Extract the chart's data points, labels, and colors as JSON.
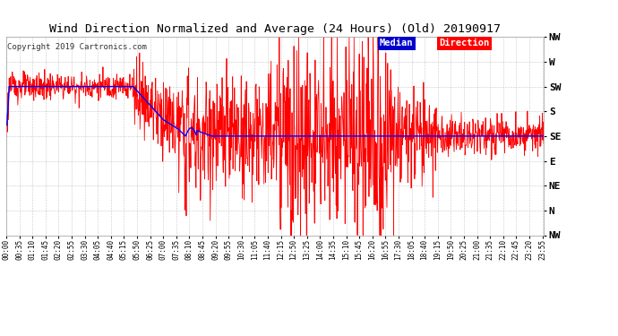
{
  "title": "Wind Direction Normalized and Average (24 Hours) (Old) 20190917",
  "copyright": "Copyright 2019 Cartronics.com",
  "yticks_labels": [
    "NW",
    "W",
    "SW",
    "S",
    "SE",
    "E",
    "NE",
    "N",
    "NW"
  ],
  "yticks_values": [
    315,
    270,
    225,
    180,
    135,
    90,
    45,
    0,
    -45
  ],
  "ymin": -45,
  "ymax": 315,
  "bg_color": "#ffffff",
  "grid_color": "#aaaaaa",
  "xtick_labels": [
    "00:00",
    "00:35",
    "01:10",
    "01:45",
    "02:20",
    "02:55",
    "03:30",
    "04:05",
    "04:40",
    "05:15",
    "05:50",
    "06:25",
    "07:00",
    "07:35",
    "08:10",
    "08:45",
    "09:20",
    "09:55",
    "10:30",
    "11:05",
    "11:40",
    "12:15",
    "12:50",
    "13:25",
    "14:00",
    "14:35",
    "15:10",
    "15:45",
    "16:20",
    "16:55",
    "17:30",
    "18:05",
    "18:40",
    "19:15",
    "19:50",
    "20:25",
    "21:00",
    "21:35",
    "22:10",
    "22:45",
    "23:20",
    "23:55"
  ]
}
